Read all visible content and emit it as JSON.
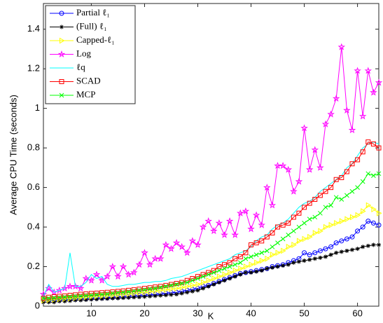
{
  "chart_data": {
    "type": "line",
    "xlabel": "K",
    "ylabel": "Average CPU Time (seconds)",
    "x": [
      1,
      2,
      3,
      4,
      5,
      6,
      7,
      8,
      9,
      10,
      11,
      12,
      13,
      14,
      15,
      16,
      17,
      18,
      19,
      20,
      21,
      22,
      23,
      24,
      25,
      26,
      27,
      28,
      29,
      30,
      31,
      32,
      33,
      34,
      35,
      36,
      37,
      38,
      39,
      40,
      41,
      42,
      43,
      44,
      45,
      46,
      47,
      48,
      49,
      50,
      51,
      52,
      53,
      54,
      55,
      56,
      57,
      58,
      59,
      60,
      61,
      62,
      63,
      64
    ],
    "xlim": [
      1,
      64
    ],
    "ylim": [
      0,
      1.53
    ],
    "xticks": [
      10,
      20,
      30,
      40,
      50,
      60
    ],
    "yticks": [
      0,
      0.2,
      0.4,
      0.6,
      0.8,
      1,
      1.2,
      1.4
    ],
    "legend": "upper left",
    "series": [
      {
        "name": "Partial ℓ₁",
        "color": "#0000ff",
        "marker": "circle",
        "values": [
          0.03,
          0.03,
          0.03,
          0.032,
          0.033,
          0.035,
          0.036,
          0.037,
          0.038,
          0.04,
          0.041,
          0.042,
          0.043,
          0.045,
          0.046,
          0.048,
          0.05,
          0.052,
          0.054,
          0.056,
          0.058,
          0.06,
          0.062,
          0.065,
          0.068,
          0.07,
          0.075,
          0.08,
          0.085,
          0.09,
          0.1,
          0.105,
          0.115,
          0.125,
          0.135,
          0.145,
          0.155,
          0.165,
          0.17,
          0.175,
          0.18,
          0.185,
          0.19,
          0.2,
          0.205,
          0.21,
          0.22,
          0.23,
          0.24,
          0.27,
          0.26,
          0.27,
          0.28,
          0.29,
          0.3,
          0.32,
          0.33,
          0.34,
          0.35,
          0.38,
          0.4,
          0.43,
          0.42,
          0.41
        ]
      },
      {
        "name": "(Full) ℓ₁",
        "color": "#000000",
        "marker": "star",
        "values": [
          0.02,
          0.02,
          0.02,
          0.025,
          0.025,
          0.027,
          0.03,
          0.03,
          0.032,
          0.034,
          0.035,
          0.037,
          0.038,
          0.04,
          0.04,
          0.042,
          0.043,
          0.045,
          0.046,
          0.048,
          0.05,
          0.052,
          0.054,
          0.056,
          0.058,
          0.06,
          0.065,
          0.07,
          0.075,
          0.08,
          0.09,
          0.1,
          0.11,
          0.12,
          0.13,
          0.14,
          0.15,
          0.16,
          0.17,
          0.17,
          0.175,
          0.18,
          0.19,
          0.195,
          0.2,
          0.205,
          0.21,
          0.22,
          0.225,
          0.23,
          0.235,
          0.24,
          0.245,
          0.25,
          0.26,
          0.27,
          0.275,
          0.28,
          0.285,
          0.29,
          0.3,
          0.305,
          0.31,
          0.31
        ]
      },
      {
        "name": "Capped-ℓ₁",
        "color": "#ffff00",
        "marker": "triangle",
        "values": [
          0.03,
          0.032,
          0.034,
          0.036,
          0.038,
          0.04,
          0.042,
          0.044,
          0.046,
          0.048,
          0.05,
          0.052,
          0.054,
          0.056,
          0.058,
          0.06,
          0.062,
          0.065,
          0.068,
          0.07,
          0.073,
          0.076,
          0.08,
          0.083,
          0.087,
          0.09,
          0.095,
          0.1,
          0.105,
          0.11,
          0.12,
          0.13,
          0.14,
          0.15,
          0.16,
          0.17,
          0.18,
          0.19,
          0.2,
          0.21,
          0.22,
          0.23,
          0.24,
          0.26,
          0.27,
          0.28,
          0.3,
          0.31,
          0.33,
          0.34,
          0.35,
          0.37,
          0.38,
          0.4,
          0.41,
          0.42,
          0.43,
          0.44,
          0.45,
          0.46,
          0.48,
          0.51,
          0.49,
          0.47
        ]
      },
      {
        "name": "Log",
        "color": "#ff00ff",
        "marker": "pentagram",
        "values": [
          0.06,
          0.09,
          0.07,
          0.08,
          0.09,
          0.1,
          0.1,
          0.09,
          0.14,
          0.13,
          0.16,
          0.13,
          0.15,
          0.2,
          0.15,
          0.2,
          0.16,
          0.17,
          0.21,
          0.27,
          0.21,
          0.24,
          0.24,
          0.31,
          0.29,
          0.32,
          0.3,
          0.27,
          0.33,
          0.31,
          0.4,
          0.43,
          0.38,
          0.42,
          0.36,
          0.43,
          0.36,
          0.47,
          0.48,
          0.39,
          0.46,
          0.41,
          0.6,
          0.51,
          0.71,
          0.71,
          0.69,
          0.58,
          0.63,
          0.9,
          0.69,
          0.79,
          0.7,
          0.92,
          0.97,
          1.05,
          1.31,
          0.99,
          0.89,
          1.19,
          0.96,
          1.19,
          1.08,
          1.13
        ]
      },
      {
        "name": "ℓq",
        "color": "#00ffff",
        "marker": "none",
        "values": [
          0.05,
          0.11,
          0.07,
          0.08,
          0.09,
          0.27,
          0.1,
          0.1,
          0.12,
          0.16,
          0.14,
          0.15,
          0.11,
          0.1,
          0.1,
          0.105,
          0.11,
          0.11,
          0.115,
          0.12,
          0.12,
          0.125,
          0.125,
          0.13,
          0.14,
          0.145,
          0.15,
          0.16,
          0.17,
          0.18,
          0.19,
          0.2,
          0.21,
          0.22,
          0.23,
          0.24,
          0.26,
          0.27,
          0.28,
          0.3,
          0.33,
          0.35,
          0.36,
          0.39,
          0.41,
          0.42,
          0.44,
          0.47,
          0.5,
          0.52,
          0.53,
          0.55,
          0.58,
          0.6,
          0.62,
          0.64,
          0.66,
          0.7,
          0.72,
          0.76,
          0.8,
          0.82,
          0.83,
          0.82
        ]
      },
      {
        "name": "SCAD",
        "color": "#ff0000",
        "marker": "square",
        "values": [
          0.04,
          0.045,
          0.048,
          0.05,
          0.052,
          0.055,
          0.057,
          0.06,
          0.062,
          0.064,
          0.066,
          0.068,
          0.07,
          0.072,
          0.075,
          0.077,
          0.08,
          0.083,
          0.086,
          0.09,
          0.093,
          0.097,
          0.1,
          0.105,
          0.11,
          0.115,
          0.12,
          0.13,
          0.14,
          0.15,
          0.16,
          0.17,
          0.18,
          0.2,
          0.21,
          0.22,
          0.24,
          0.25,
          0.27,
          0.31,
          0.32,
          0.33,
          0.35,
          0.37,
          0.4,
          0.41,
          0.42,
          0.45,
          0.47,
          0.5,
          0.52,
          0.54,
          0.56,
          0.58,
          0.6,
          0.64,
          0.65,
          0.68,
          0.72,
          0.74,
          0.78,
          0.83,
          0.82,
          0.8
        ]
      },
      {
        "name": "MCP",
        "color": "#00ff00",
        "marker": "x",
        "values": [
          0.04,
          0.04,
          0.042,
          0.044,
          0.046,
          0.048,
          0.05,
          0.052,
          0.054,
          0.056,
          0.058,
          0.06,
          0.062,
          0.065,
          0.068,
          0.07,
          0.073,
          0.076,
          0.08,
          0.083,
          0.087,
          0.09,
          0.095,
          0.1,
          0.105,
          0.11,
          0.115,
          0.12,
          0.13,
          0.14,
          0.15,
          0.16,
          0.17,
          0.18,
          0.19,
          0.2,
          0.21,
          0.22,
          0.24,
          0.25,
          0.26,
          0.27,
          0.28,
          0.3,
          0.32,
          0.34,
          0.36,
          0.38,
          0.4,
          0.42,
          0.44,
          0.45,
          0.47,
          0.5,
          0.51,
          0.55,
          0.54,
          0.56,
          0.58,
          0.6,
          0.63,
          0.67,
          0.66,
          0.67
        ]
      }
    ]
  }
}
